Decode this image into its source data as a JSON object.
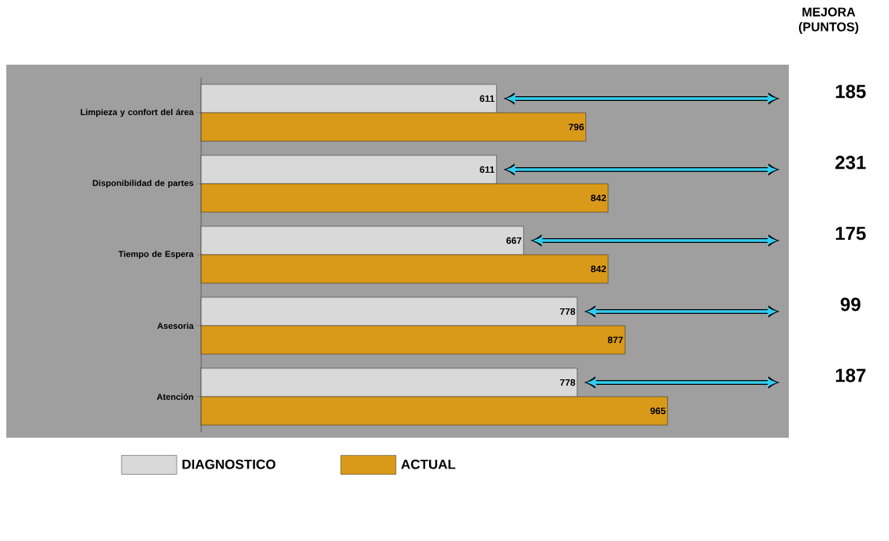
{
  "chart_data": {
    "type": "bar",
    "orientation": "horizontal",
    "tick_labels": "y",
    "data_labels": true,
    "legend": "bottom",
    "categories": [
      "Limpieza y confort del área",
      "Disponibilidad de partes",
      "Tiempo de Espera",
      "Asesoria",
      "Atención"
    ],
    "series": [
      {
        "name": "DIAGNOSTICO",
        "color": "#d9d9d9",
        "values": [
          611,
          611,
          667,
          778,
          778
        ]
      },
      {
        "name": "ACTUAL",
        "color": "#d99a1a",
        "values": [
          796,
          842,
          842,
          877,
          965
        ]
      }
    ],
    "annotations": [
      "MEJORA (PUNTOS)",
      "185",
      "231",
      "175",
      "99",
      "187"
    ]
  }
}
